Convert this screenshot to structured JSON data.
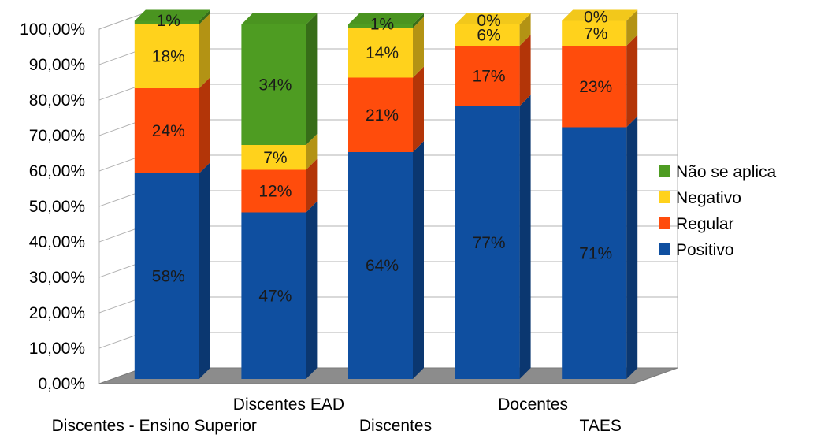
{
  "chart_data": {
    "type": "bar",
    "stacked": true,
    "three_d": true,
    "categories": [
      "Discentes - Ensino Superior",
      "Discentes EAD",
      "Discentes",
      "Docentes",
      "TAES"
    ],
    "series": [
      {
        "name": "Positivo",
        "color": "#0f4fa0",
        "values": [
          58,
          47,
          64,
          77,
          71
        ],
        "labels": [
          "58%",
          "47%",
          "64%",
          "77%",
          "71%"
        ]
      },
      {
        "name": "Regular",
        "color": "#ff4c0c",
        "values": [
          24,
          12,
          21,
          17,
          23
        ],
        "labels": [
          "24%",
          "12%",
          "21%",
          "17%",
          "23%"
        ]
      },
      {
        "name": "Negativo",
        "color": "#ffd21c",
        "values": [
          18,
          7,
          14,
          6,
          7
        ],
        "labels": [
          "18%",
          "7%",
          "14%",
          "6%",
          "7%"
        ]
      },
      {
        "name": "Não se aplica",
        "color": "#4e9c22",
        "values": [
          1,
          34,
          1,
          0,
          0
        ],
        "labels": [
          "1%",
          "34%",
          "1%",
          "0%",
          "0%"
        ]
      }
    ],
    "ylim": [
      0,
      100
    ],
    "yticks": [
      "0,00%",
      "10,00%",
      "20,00%",
      "30,00%",
      "40,00%",
      "50,00%",
      "60,00%",
      "70,00%",
      "80,00%",
      "90,00%",
      "100,00%"
    ],
    "grid": true,
    "legend_position": "right",
    "legend_order": [
      "Não se aplica",
      "Negativo",
      "Regular",
      "Positivo"
    ],
    "title": "",
    "xlabel": "",
    "ylabel": ""
  }
}
